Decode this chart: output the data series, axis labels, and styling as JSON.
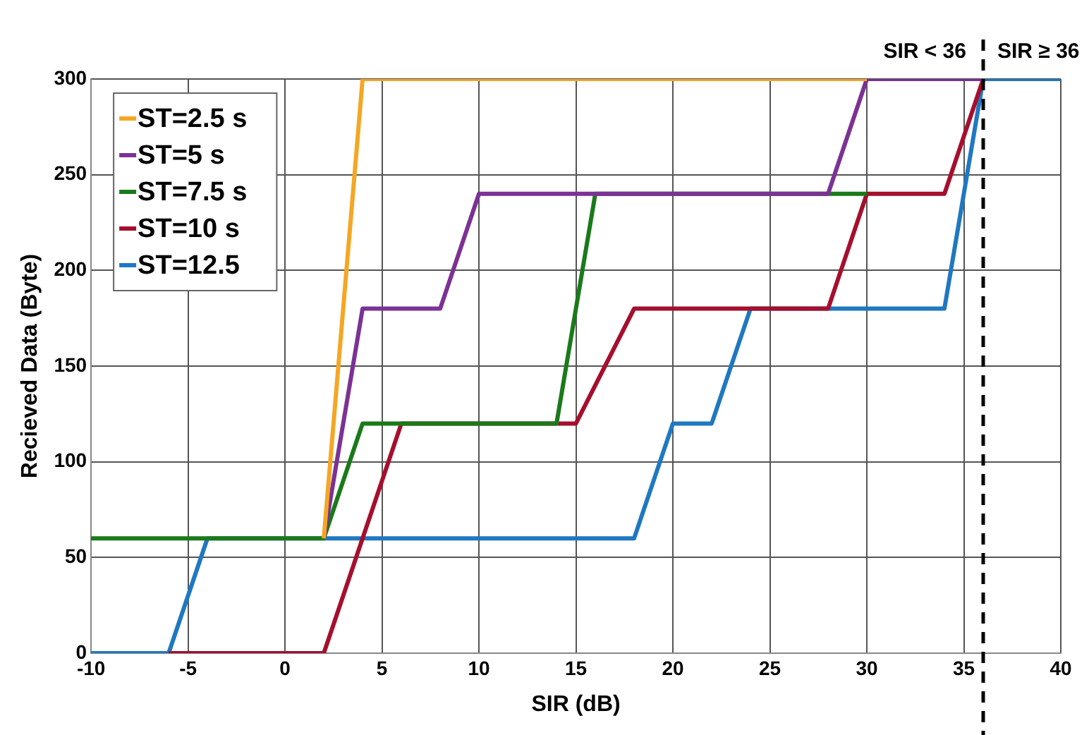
{
  "chart_data": {
    "type": "line",
    "xlabel": "SIR (dB)",
    "ylabel": "Recieved Data (Byte)",
    "xlim": [
      -10,
      40
    ],
    "xticks": [
      -10,
      -5,
      0,
      5,
      10,
      15,
      20,
      25,
      30,
      35,
      40
    ],
    "ylim": [
      0,
      300
    ],
    "yticks": [
      0,
      50,
      100,
      150,
      200,
      250,
      300
    ],
    "grid": true,
    "legend": "top left",
    "marker": "none",
    "line_style": "solid",
    "series": [
      {
        "name": "ST=2.5 s",
        "color": "#f5a623",
        "x": [
          2,
          4,
          30
        ],
        "values": [
          60,
          300,
          300
        ]
      },
      {
        "name": "ST=5 s",
        "color": "#7b3294",
        "x": [
          2,
          4,
          8,
          10,
          28,
          30,
          36
        ],
        "values": [
          60,
          180,
          180,
          240,
          240,
          300,
          300
        ]
      },
      {
        "name": "ST=7.5 s",
        "color": "#1a7a1a",
        "x": [
          -10,
          2,
          4,
          14,
          16,
          30
        ],
        "values": [
          60,
          60,
          120,
          120,
          240,
          240
        ]
      },
      {
        "name": "ST=10 s",
        "color": "#a50f2d",
        "x": [
          -6,
          2,
          6,
          15,
          18,
          28,
          30,
          34,
          36
        ],
        "values": [
          0,
          0,
          120,
          120,
          180,
          180,
          240,
          240,
          300
        ]
      },
      {
        "name": "ST=12.5",
        "color": "#1f78c1",
        "x": [
          -10,
          -6,
          -4,
          18,
          20,
          22,
          24,
          34,
          36,
          40
        ],
        "values": [
          0,
          0,
          60,
          60,
          120,
          120,
          180,
          180,
          300,
          300
        ]
      }
    ],
    "ref_lines": [
      {
        "axis": "x",
        "value": 36,
        "color": "#000000",
        "line_style": "dashed"
      }
    ],
    "annotations": [
      "SIR < 36",
      "SIR ≥ 36"
    ]
  }
}
